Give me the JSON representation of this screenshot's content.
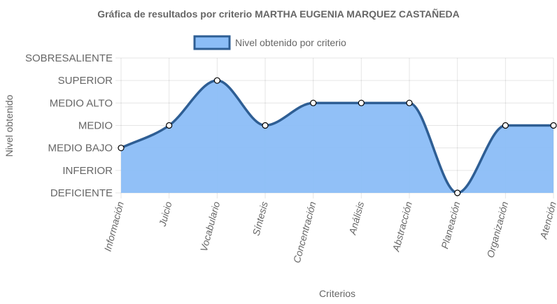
{
  "chart_data": {
    "type": "line",
    "title": "Gráfica de resultados por criterio MARTHA EUGENIA MARQUEZ CASTAÑEDA",
    "xlabel": "Criterios",
    "ylabel": "Nivel obtenido",
    "categories": [
      "Información",
      "Juicio",
      "Vocabulario",
      "Síntesis",
      "Concentración",
      "Análisis",
      "Abstracción",
      "Planeación",
      "Organización",
      "Atención"
    ],
    "y_levels": [
      "DEFICIENTE",
      "INFERIOR",
      "MEDIO BAJO",
      "MEDIO",
      "MEDIO ALTO",
      "SUPERIOR",
      "SOBRESALIENTE"
    ],
    "ylim": [
      0,
      6
    ],
    "grid": true,
    "legend_position": "top",
    "series": [
      {
        "name": "Nivel obtenido por criterio",
        "values": [
          2,
          3,
          5,
          3,
          4,
          4,
          4,
          0,
          3,
          3
        ],
        "fill": true,
        "line_color": "#2e5e94",
        "fill_color": "#8bbdf7"
      }
    ]
  }
}
